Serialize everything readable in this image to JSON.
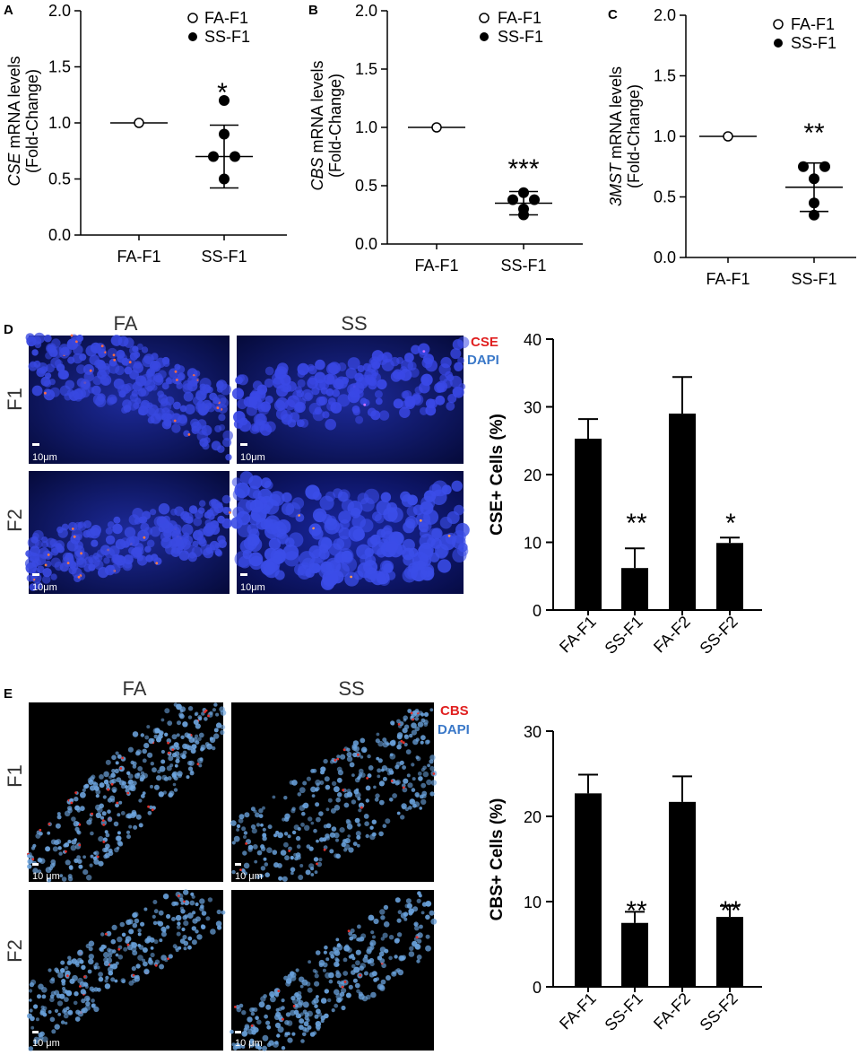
{
  "panels": {
    "A": {
      "letter": "A",
      "ylabel_italic": "CSE",
      "ylabel_rest": " mRNA levels",
      "ylabel_line2": "(Fold-Change)",
      "legend": [
        "FA-F1",
        "SS-F1"
      ],
      "significance": "*"
    },
    "B": {
      "letter": "B",
      "ylabel_italic": "CBS",
      "ylabel_rest": " mRNA levels",
      "ylabel_line2": "(Fold-Change)",
      "legend": [
        "FA-F1",
        "SS-F1"
      ],
      "significance": "***"
    },
    "C": {
      "letter": "C",
      "ylabel_italic": "3MST",
      "ylabel_rest": " mRNA levels",
      "ylabel_line2": "(Fold-Change)",
      "legend": [
        "FA-F1",
        "SS-F1"
      ],
      "significance": "**"
    },
    "D": {
      "letter": "D",
      "col_titles": [
        "FA",
        "SS"
      ],
      "row_labels": [
        "F1",
        "F2"
      ],
      "stain": "CSE",
      "counterstain": "DAPI",
      "scale_bar": "10μm",
      "significance": [
        "**",
        "*"
      ]
    },
    "E": {
      "letter": "E",
      "col_titles": [
        "FA",
        "SS"
      ],
      "row_labels": [
        "F1",
        "F2"
      ],
      "stain": "CBS",
      "counterstain": "DAPI",
      "scale_bar": "10 μm",
      "significance": [
        "**",
        "**"
      ]
    }
  },
  "chart_data": [
    {
      "panel": "A",
      "type": "scatter",
      "categories": [
        "FA-F1",
        "SS-F1"
      ],
      "yticks": [
        "0.0",
        "0.5",
        "1.0",
        "1.5",
        "2.0"
      ],
      "ylim": [
        0,
        2.0
      ],
      "series": [
        {
          "name": "FA-F1",
          "marker": "open-circle",
          "category": "FA-F1",
          "points": [
            1.0
          ],
          "mean": 1.0
        },
        {
          "name": "SS-F1",
          "marker": "filled-circle",
          "category": "SS-F1",
          "points": [
            1.2,
            0.9,
            0.7,
            0.7,
            0.5
          ],
          "mean": 0.7,
          "sd": 0.28
        }
      ]
    },
    {
      "panel": "B",
      "type": "scatter",
      "categories": [
        "FA-F1",
        "SS-F1"
      ],
      "yticks": [
        "0.0",
        "0.5",
        "1.0",
        "1.5",
        "2.0"
      ],
      "ylim": [
        0,
        2.0
      ],
      "series": [
        {
          "name": "FA-F1",
          "marker": "open-circle",
          "category": "FA-F1",
          "points": [
            1.0
          ],
          "mean": 1.0
        },
        {
          "name": "SS-F1",
          "marker": "filled-circle",
          "category": "SS-F1",
          "points": [
            0.44,
            0.38,
            0.38,
            0.3,
            0.25
          ],
          "mean": 0.35,
          "sd": 0.1
        }
      ]
    },
    {
      "panel": "C",
      "type": "scatter",
      "categories": [
        "FA-F1",
        "SS-F1"
      ],
      "yticks": [
        "0.0",
        "0.5",
        "1.0",
        "1.5",
        "2.0"
      ],
      "ylim": [
        0,
        2.0
      ],
      "series": [
        {
          "name": "FA-F1",
          "marker": "open-circle",
          "category": "FA-F1",
          "points": [
            1.0
          ],
          "mean": 1.0
        },
        {
          "name": "SS-F1",
          "marker": "filled-circle",
          "category": "SS-F1",
          "points": [
            0.75,
            0.75,
            0.65,
            0.45,
            0.35
          ],
          "mean": 0.58,
          "sd": 0.2
        }
      ]
    },
    {
      "panel": "D",
      "type": "bar",
      "categories": [
        "FA-F1",
        "SS-F1",
        "FA-F2",
        "SS-F2"
      ],
      "values": [
        25.3,
        6.2,
        29.0,
        9.9
      ],
      "errors": [
        2.9,
        2.9,
        5.4,
        0.8
      ],
      "ylabel": "CSE+ Cells (%)",
      "yticks": [
        "0",
        "10",
        "20",
        "30",
        "40"
      ],
      "ylim": [
        0,
        40
      ]
    },
    {
      "panel": "E",
      "type": "bar",
      "categories": [
        "FA-F1",
        "SS-F1",
        "FA-F2",
        "SS-F2"
      ],
      "values": [
        22.7,
        7.5,
        21.7,
        8.2
      ],
      "errors": [
        2.2,
        1.3,
        3.0,
        1.3
      ],
      "ylabel": "CBS+ Cells (%)",
      "yticks": [
        "0",
        "10",
        "20",
        "30"
      ],
      "ylim": [
        0,
        30
      ]
    }
  ]
}
